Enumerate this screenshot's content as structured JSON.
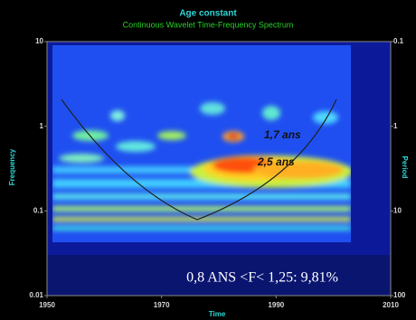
{
  "chart_data": {
    "type": "wavelet-spectrum",
    "title": "Age constant",
    "subtitle": "Continuous Wavelet Time-Frequency Spectrum",
    "x_label": "Time",
    "y_label": "Frequency",
    "y2_label": "Period",
    "xlim": [
      1950,
      2010
    ],
    "xticks": [
      1950,
      1970,
      1990,
      2010
    ],
    "ylim": [
      0.01,
      10
    ],
    "yticks": [
      0.01,
      0.1,
      1,
      10
    ],
    "y2lim": [
      100,
      0.1
    ],
    "y2ticks": [
      100,
      10,
      1,
      0.1
    ],
    "log_scale": true,
    "annotations": [
      "1,7 ans",
      "2,5 ans",
      "0,8 ANS <F< 1,25: 9,81%"
    ]
  }
}
